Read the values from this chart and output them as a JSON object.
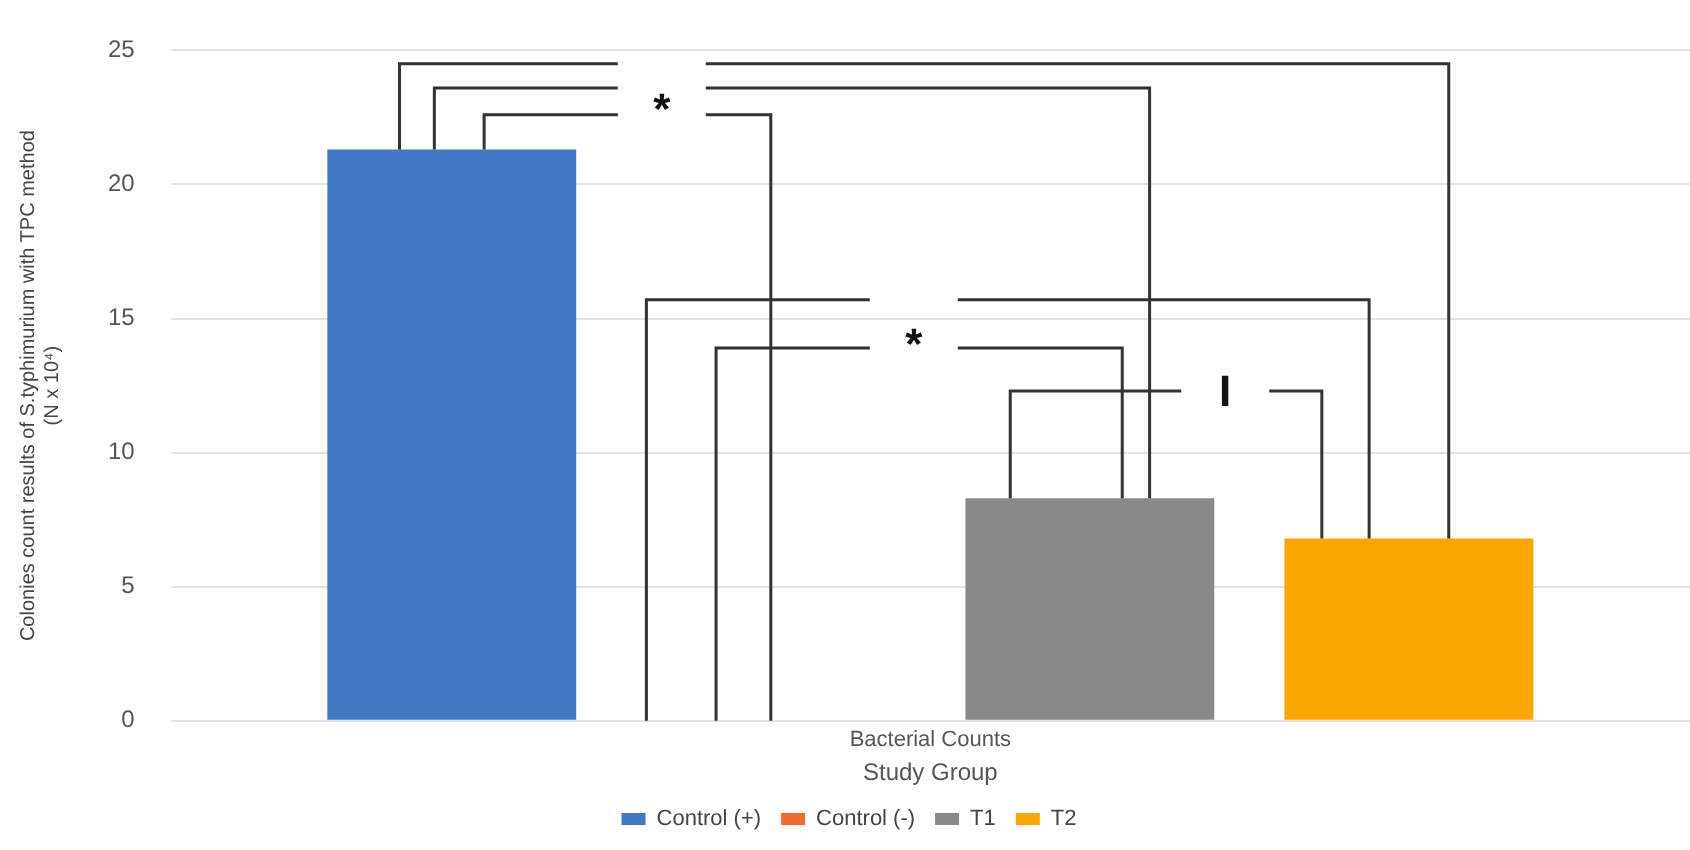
{
  "chart_data": {
    "type": "bar",
    "categories": [
      "Bacterial Counts"
    ],
    "series": [
      {
        "name": "Control (+)",
        "color": "#4178c4",
        "values": [
          21.3
        ]
      },
      {
        "name": "Control (-)",
        "color": "#ef6c2e",
        "values": [
          0
        ]
      },
      {
        "name": "T1",
        "color": "#898989",
        "values": [
          8.3
        ]
      },
      {
        "name": "T2",
        "color": "#fca600",
        "values": [
          6.8
        ]
      }
    ],
    "xlabel": "Study Group",
    "ylabel": "Colonies count results of S.typhimurium with TPC method\n(N x 10⁴)",
    "ylim": [
      0,
      25
    ],
    "yticks": [
      0,
      5,
      10,
      15,
      20,
      25
    ],
    "grid": "y",
    "legend": "bottom",
    "annotations": [
      "*",
      "*",
      "I"
    ]
  }
}
